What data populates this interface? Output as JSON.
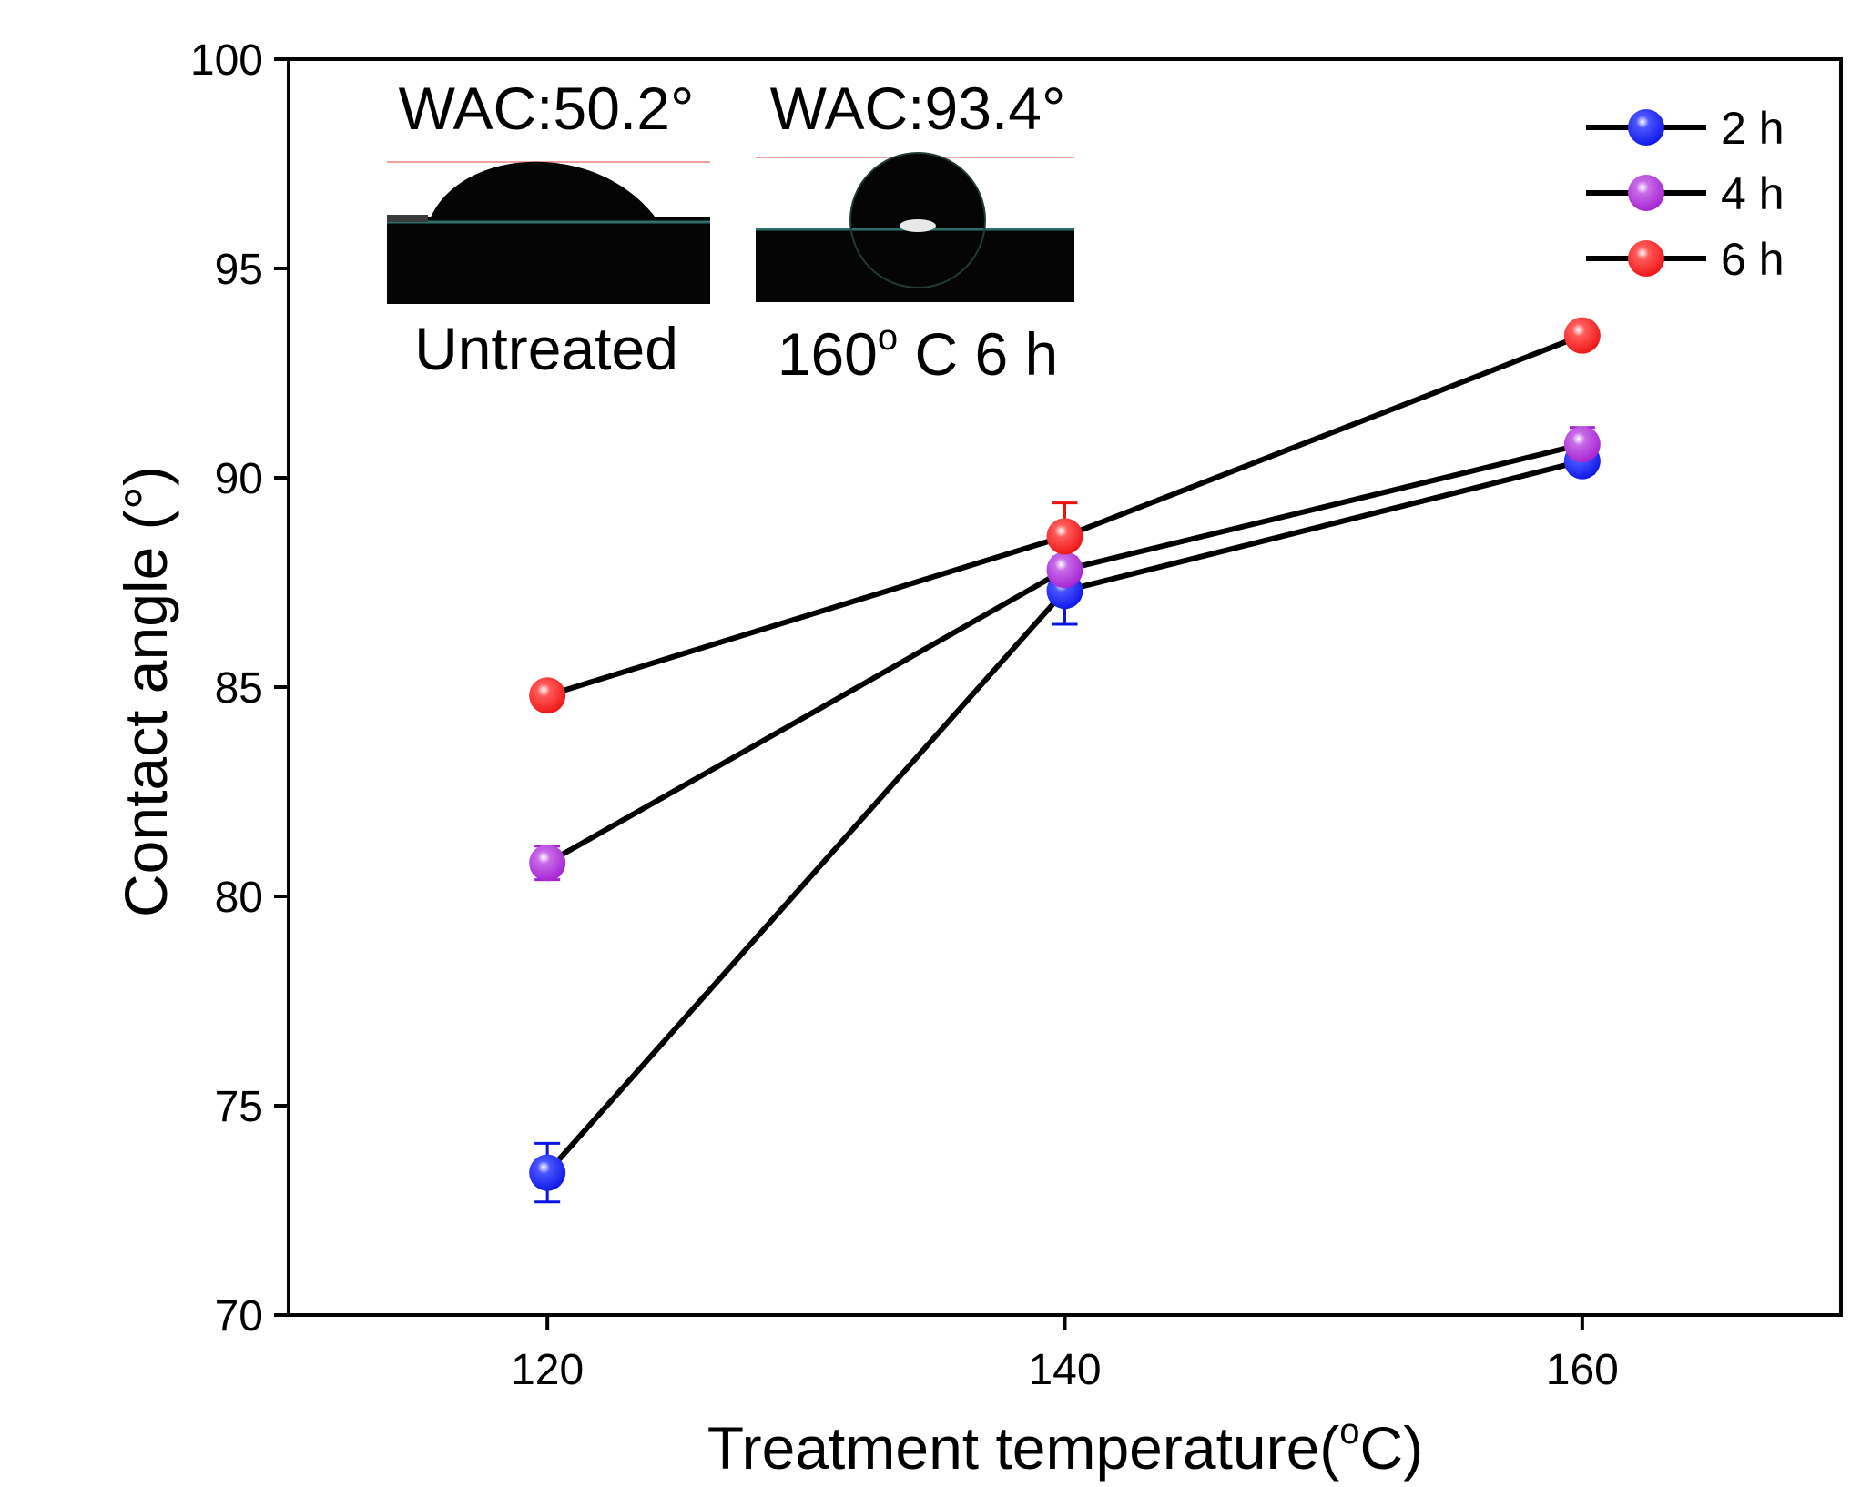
{
  "chart_data": {
    "type": "line",
    "title": "",
    "xlabel": "Treatment temperature(",
    "xlabel_sup": "o",
    "xlabel_tail": "C)",
    "ylabel": "Contact angle (°)",
    "xlim": [
      110,
      170
    ],
    "ylim": [
      70,
      100
    ],
    "x_ticks": [
      120,
      140,
      160
    ],
    "y_ticks": [
      70,
      75,
      80,
      85,
      90,
      95,
      100
    ],
    "x": [
      120,
      140,
      160
    ],
    "grid": false,
    "legend_position": "top-right",
    "series": [
      {
        "name": "2 h",
        "color": "#0a14e6",
        "values": [
          73.4,
          87.3,
          90.4
        ],
        "errors": [
          0.7,
          0.8,
          0.3
        ]
      },
      {
        "name": "4 h",
        "color": "#a31fd1",
        "values": [
          80.8,
          87.8,
          90.8
        ],
        "errors": [
          0.4,
          0.3,
          0.4
        ]
      },
      {
        "name": "6 h",
        "color": "#ee1111",
        "values": [
          84.8,
          88.6,
          93.4
        ],
        "errors": [
          0.2,
          0.8,
          0.2
        ]
      }
    ],
    "insets": [
      {
        "wac": "WAC:50.2°",
        "caption": "Untreated"
      },
      {
        "wac": "WAC:93.4°",
        "caption_main": "160",
        "caption_sup": "o",
        "caption_tail": " C 6 h"
      }
    ]
  }
}
